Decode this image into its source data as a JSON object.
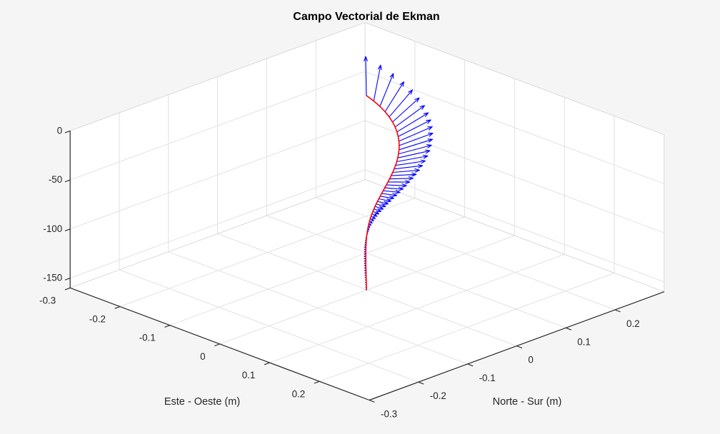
{
  "figure": {
    "type": "matlab-3d-figure",
    "background_color": "#f5f5f5",
    "wall_color": "#ffffff",
    "grid_color": "#e2e2e2",
    "edge_color": "#d9d9d9",
    "axis_color": "#262626",
    "text_color": "#262626",
    "title_color": "#000000"
  },
  "chart_data": {
    "type": "3d-quiver-spiral",
    "title": "Campo Vectorial de Ekman",
    "grid": true,
    "view": {
      "azimuth_deg": -37.5,
      "elevation_deg": 30,
      "projection": "orthographic"
    },
    "axes": {
      "x": {
        "label": "Este - Oeste (m)",
        "lim": [
          -0.3,
          0.3
        ],
        "ticks": [
          -0.3,
          -0.2,
          -0.1,
          0,
          0.1,
          0.2
        ],
        "tick_labels": [
          "-0.3",
          "-0.2",
          "-0.1",
          "0",
          "0.1",
          "0.2"
        ]
      },
      "y": {
        "label": "Norte - Sur (m)",
        "lim": [
          -0.3,
          0.3
        ],
        "ticks": [
          -0.3,
          -0.2,
          -0.1,
          0,
          0.1,
          0.2
        ],
        "tick_labels": [
          "-0.3",
          "-0.2",
          "-0.1",
          "0",
          "0.1",
          "0.2"
        ]
      },
      "z": {
        "label": "",
        "lim": [
          -160,
          0
        ],
        "ticks": [
          0,
          -50,
          -100,
          -150
        ],
        "tick_labels": [
          "0",
          "-50",
          "-100",
          "-150"
        ]
      }
    },
    "series": [
      {
        "name": "ekman-spiral-curve",
        "style": "line3",
        "color": "#ff0000",
        "line_width": 1.6
      },
      {
        "name": "ekman-velocity-vectors",
        "style": "quiver3",
        "color": "#0000ff",
        "line_width": 1.1
      }
    ],
    "spiral": {
      "description": "Ekman spiral: horizontal current vector rotates clockwise and decays exponentially with depth; red curve is plot3(u(z),v(z),z), blue arrows are quiver3 of (u,v,0) at each depth",
      "surface_speed_m_s": 0.143,
      "surface_direction_deg_ccw_from_east": 135,
      "ekman_depth_m": 100,
      "depth": {
        "z_start": 0,
        "z_end": -160,
        "dz": -2.5,
        "n_points": 65
      },
      "u_of_z": "0.143*exp(pi*z/100)*cos(3*pi/4 + pi*z/100)",
      "v_of_z": "0.143*exp(pi*z/100)*sin(3*pi/4 + pi*z/100)",
      "quiver_scale": 1.05,
      "key_values": {
        "surface_u": -0.101,
        "surface_v": 0.101,
        "direction_at_z-50_deg": 45,
        "direction_at_z-100_deg": -45,
        "speed_at_z-100_m_s": 0.0062
      }
    }
  }
}
